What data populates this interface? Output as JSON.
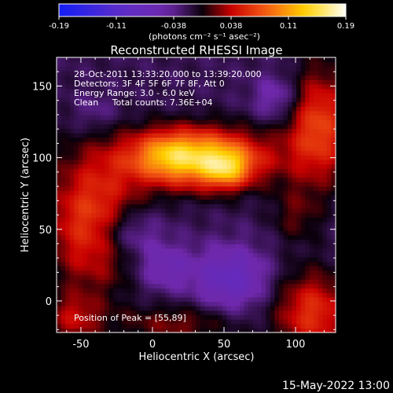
{
  "chart_data": {
    "type": "heatmap",
    "title": "Reconstructed RHESSI Image",
    "xlabel": "Heliocentric X (arcsec)",
    "ylabel": "Heliocentric Y (arcsec)",
    "xlim": [
      -67,
      128
    ],
    "ylim": [
      -22,
      170
    ],
    "x_ticks": [
      -50,
      0,
      50,
      100
    ],
    "y_ticks": [
      0,
      50,
      100,
      150
    ],
    "colorbar": {
      "range": [
        -0.19,
        0.19
      ],
      "tick_labels": [
        "-0.19",
        "-0.11",
        "-0.038",
        "0.038",
        "0.11",
        "0.19"
      ],
      "unit_label": "(photons cm⁻² s⁻¹ asec⁻²)"
    },
    "annotations": [
      "28-Oct-2011 13:33:20.000 to 13:39:20.000",
      "Detectors: 3F 4F 5F 6F 7F 8F, Att 0",
      "Energy Range: 3.0 - 6.0 keV",
      "Clean     Total counts: 7.36E+04"
    ],
    "peak_text": "Position of Peak = [55,89]",
    "peak": [
      55,
      89
    ],
    "sources": [
      {
        "x": 30,
        "y": 100,
        "sx": 34,
        "sy": 14,
        "amp": 0.16
      },
      {
        "x": 52,
        "y": 92,
        "sx": 11,
        "sy": 9,
        "amp": 0.07
      },
      {
        "x": 10,
        "y": 104,
        "sx": 14,
        "sy": 10,
        "amp": 0.03
      },
      {
        "x": -42,
        "y": 56,
        "sx": 22,
        "sy": 32,
        "amp": 0.09
      },
      {
        "x": 116,
        "y": 122,
        "sx": 16,
        "sy": 28,
        "amp": 0.09
      },
      {
        "x": 112,
        "y": -8,
        "sx": 18,
        "sy": 20,
        "amp": 0.08
      },
      {
        "x": 18,
        "y": -16,
        "sx": 30,
        "sy": 10,
        "amp": 0.04
      },
      {
        "x": -55,
        "y": -12,
        "sx": 14,
        "sy": 12,
        "amp": 0.05
      },
      {
        "x": 100,
        "y": 60,
        "sx": 12,
        "sy": 14,
        "amp": 0.03
      },
      {
        "x": -18,
        "y": 48,
        "sx": 16,
        "sy": 12,
        "amp": -0.05
      },
      {
        "x": 55,
        "y": 16,
        "sx": 18,
        "sy": 16,
        "amp": -0.06
      },
      {
        "x": 8,
        "y": 24,
        "sx": 14,
        "sy": 12,
        "amp": -0.04
      },
      {
        "x": 88,
        "y": 142,
        "sx": 12,
        "sy": 12,
        "amp": -0.04
      },
      {
        "x": -40,
        "y": 132,
        "sx": 10,
        "sy": 10,
        "amp": -0.02
      }
    ],
    "background_level": -0.02
  },
  "timestamp": "15-May-2022 13:00"
}
